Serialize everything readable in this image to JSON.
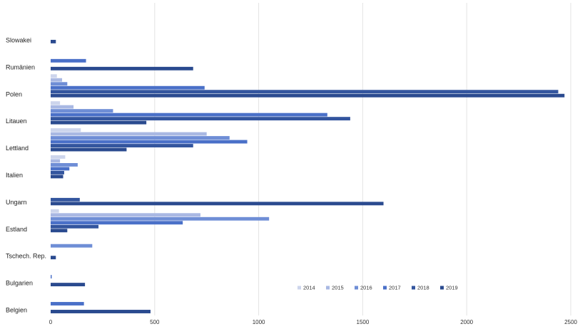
{
  "chart_data": {
    "type": "bar",
    "orientation": "horizontal",
    "title": "",
    "xlabel": "",
    "ylabel": "",
    "xlim": [
      0,
      2500
    ],
    "x_ticks": [
      0,
      500,
      1000,
      1500,
      2000,
      2500
    ],
    "grid": true,
    "legend_position": "bottom-right",
    "categories": [
      "Slowakei",
      "Rumänien",
      "Polen",
      "Litauen",
      "Lettland",
      "Italien",
      "Ungarn",
      "Estland",
      "Tschech. Rep.",
      "Bulgarien",
      "Belgien"
    ],
    "series": [
      {
        "name": "2014",
        "color": "#cdd5ec",
        "values": [
          0,
          0,
          30,
          45,
          145,
          70,
          0,
          40,
          0,
          0,
          0
        ]
      },
      {
        "name": "2015",
        "color": "#a9b8e3",
        "values": [
          0,
          0,
          55,
          110,
          750,
          45,
          0,
          720,
          0,
          0,
          0
        ]
      },
      {
        "name": "2016",
        "color": "#6f8ed6",
        "values": [
          0,
          0,
          80,
          300,
          860,
          130,
          0,
          1050,
          200,
          0,
          0
        ]
      },
      {
        "name": "2017",
        "color": "#4a70c8",
        "values": [
          0,
          170,
          740,
          1330,
          945,
          90,
          0,
          635,
          0,
          5,
          160
        ]
      },
      {
        "name": "2018",
        "color": "#33559e",
        "values": [
          0,
          0,
          2440,
          1440,
          685,
          65,
          140,
          230,
          0,
          0,
          0
        ]
      },
      {
        "name": "2019",
        "color": "#2a4a8f",
        "values": [
          25,
          685,
          2470,
          460,
          365,
          60,
          1600,
          80,
          25,
          165,
          480
        ]
      }
    ]
  }
}
